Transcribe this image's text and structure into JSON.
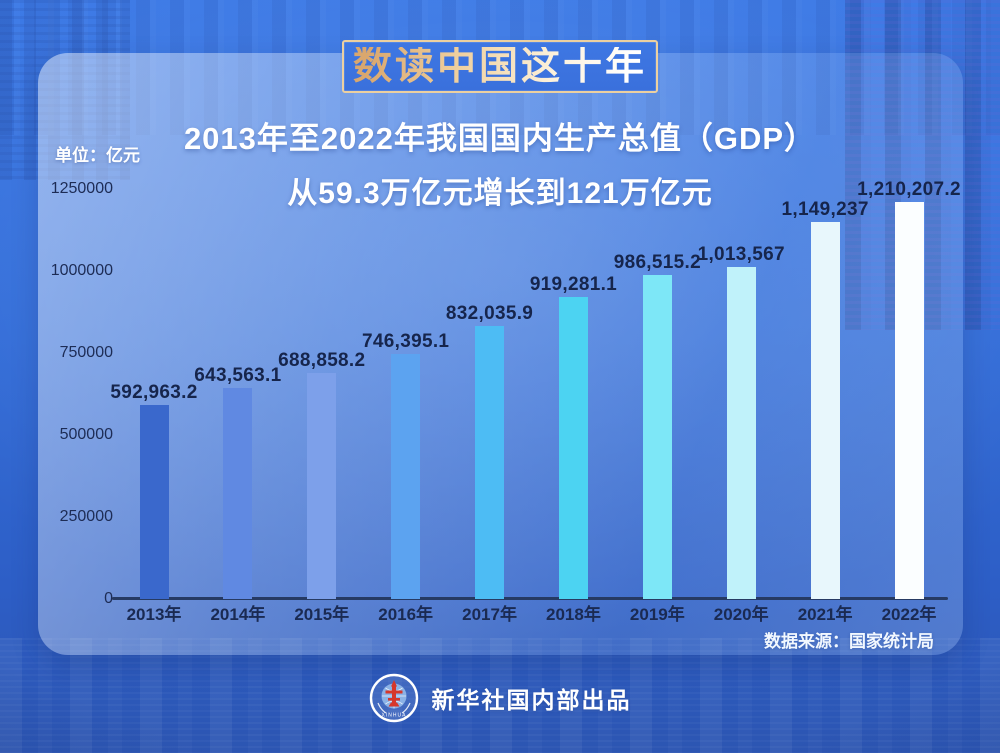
{
  "page": {
    "banner_title": "数读中国这十年",
    "subtitle_line1": "2013年至2022年我国国内生产总值（GDP）",
    "subtitle_line2": "从59.3万亿元增长到121万亿元",
    "unit_label": "单位：亿元",
    "source_label": "数据来源：国家统计局",
    "footer_text": "新华社国内部出品",
    "logo_text": "XINHUA"
  },
  "colors": {
    "background": "#3370dc",
    "panel_tint": "#7fa9ef",
    "banner_border_gold": "#ecd0a0",
    "banner_text_gold": "#e8c28b",
    "heading_text": "#ffffff",
    "label_text": "#16254c",
    "axis_line": "#263a63",
    "bar_colors": [
      "#3a68cc",
      "#6089e2",
      "#7da0ea",
      "#5ca3f0",
      "#4dbcf4",
      "#4cd3f2",
      "#7de7f7",
      "#c0f2fa",
      "#e8f7fc",
      "#fbfeff"
    ]
  },
  "chart_data": {
    "type": "bar",
    "title": "2013年至2022年我国国内生产总值（GDP）从59.3万亿元增长到121万亿元",
    "unit": "亿元",
    "categories": [
      "2013年",
      "2014年",
      "2015年",
      "2016年",
      "2017年",
      "2018年",
      "2019年",
      "2020年",
      "2021年",
      "2022年"
    ],
    "values": [
      592963.2,
      643563.1,
      688858.2,
      746395.1,
      832035.9,
      919281.1,
      986515.2,
      1013567,
      1149237,
      1210207.2
    ],
    "value_labels": [
      "592,963.2",
      "643,563.1",
      "688,858.2",
      "746,395.1",
      "832,035.9",
      "919,281.1",
      "986,515.2",
      "1,013,567",
      "1,149,237",
      "1,210,207.2"
    ],
    "y_ticks": [
      0,
      250000,
      500000,
      750000,
      1000000,
      1250000
    ],
    "ylim": [
      0,
      1250000
    ],
    "xlabel": "",
    "ylabel": "单位：亿元",
    "grid": false,
    "legend": false,
    "source": "数据来源：国家统计局"
  }
}
